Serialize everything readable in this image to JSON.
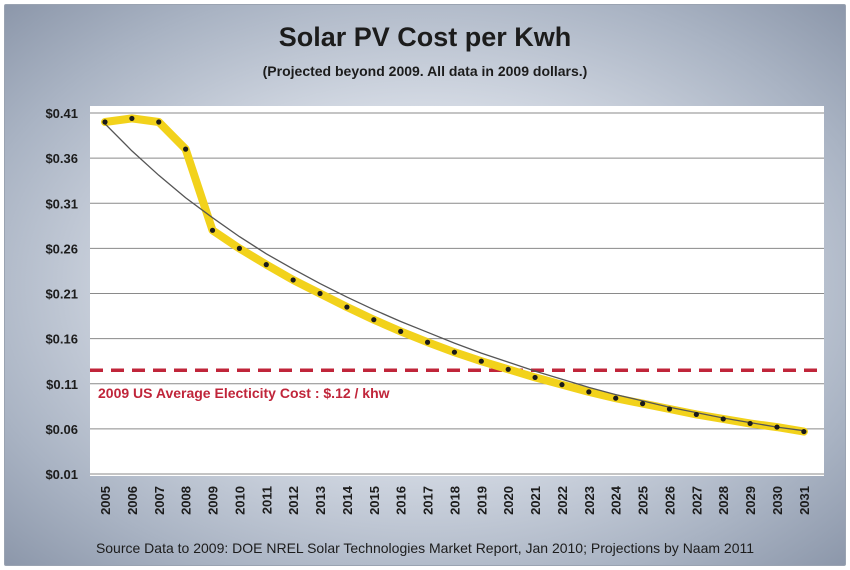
{
  "chart_data": {
    "type": "line",
    "title": "Solar PV Cost per Kwh",
    "subtitle": "(Projected beyond 2009.  All data in 2009 dollars.)",
    "source": "Source Data to 2009:  DOE NREL Solar Technologies  Market Report, Jan 2010;  Projections by Naam 2011",
    "y_ticks": [
      "$0.41",
      "$0.36",
      "$0.31",
      "$0.26",
      "$0.21",
      "$0.16",
      "$0.11",
      "$0.06",
      "$0.01"
    ],
    "ylim": [
      0.01,
      0.41
    ],
    "x": [
      "2005",
      "2006",
      "2007",
      "2008",
      "2009",
      "2010",
      "2011",
      "2012",
      "2013",
      "2014",
      "2015",
      "2016",
      "2017",
      "2018",
      "2019",
      "2020",
      "2021",
      "2022",
      "2023",
      "2024",
      "2025",
      "2026",
      "2027",
      "2028",
      "2029",
      "2030",
      "2031"
    ],
    "series": [
      {
        "values": [
          0.4,
          0.404,
          0.4,
          0.37,
          0.28,
          0.26,
          0.242,
          0.225,
          0.21,
          0.195,
          0.181,
          0.168,
          0.156,
          0.145,
          0.135,
          0.126,
          0.117,
          0.109,
          0.101,
          0.094,
          0.088,
          0.082,
          0.076,
          0.071,
          0.066,
          0.062,
          0.057
        ],
        "color": "#f2d21b"
      },
      {
        "values": [
          0.398,
          0.368,
          0.341,
          0.316,
          0.294,
          0.273,
          0.254,
          0.237,
          0.221,
          0.206,
          0.192,
          0.179,
          0.167,
          0.155,
          0.144,
          0.134,
          0.124,
          0.115,
          0.106,
          0.098,
          0.091,
          0.084,
          0.078,
          0.072,
          0.067,
          0.062,
          0.058
        ],
        "color": "#555555"
      }
    ],
    "reference_line": {
      "value": 0.125,
      "label": "2009 US Average Electicity Cost : $.12 / khw",
      "color": "#c0253a"
    },
    "grid": true,
    "legend": "none"
  }
}
